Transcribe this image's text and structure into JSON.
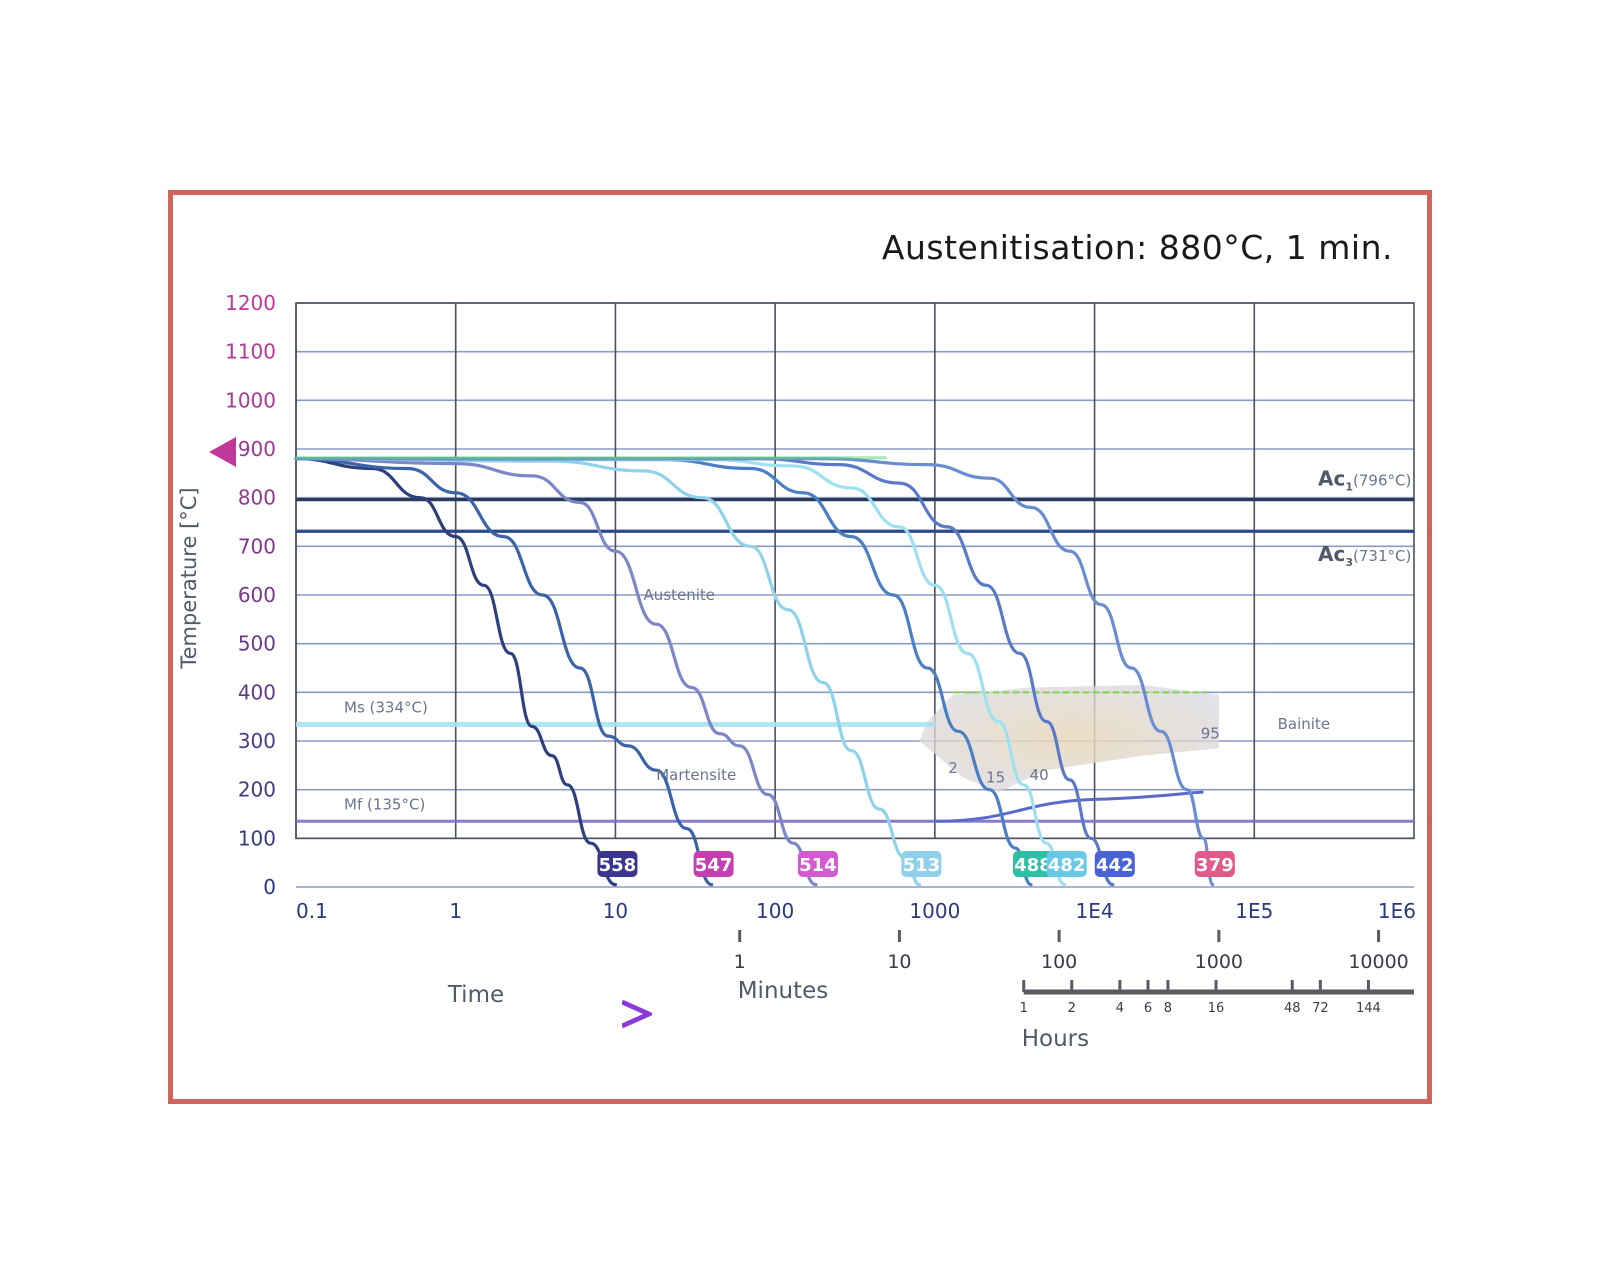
{
  "chart_data": {
    "type": "line",
    "title": "",
    "subtitle": "Austenitisation: 880°C, 1 min.",
    "ylabel": "Temperature [°C]",
    "xlabel": "Time",
    "xscale": "log",
    "xlim": [
      0.1,
      1000000
    ],
    "ylim": [
      0,
      1200
    ],
    "grid": true,
    "y_ticks": [
      0,
      100,
      200,
      300,
      400,
      500,
      600,
      700,
      800,
      900,
      1000,
      1100,
      1200
    ],
    "x_ticks": [
      {
        "value": 0.1,
        "label": "0.1"
      },
      {
        "value": 1,
        "label": "1"
      },
      {
        "value": 10,
        "label": "10"
      },
      {
        "value": 100,
        "label": "100"
      },
      {
        "value": 1000,
        "label": "1000"
      },
      {
        "value": 10000,
        "label": "1E4"
      },
      {
        "value": 100000,
        "label": "1E5"
      },
      {
        "value": 1000000,
        "label": "1E6"
      }
    ],
    "reference_lines": [
      {
        "value": 796,
        "label": "Ac",
        "sub": "1",
        "note": "(796°C)",
        "color": "#2a3a5a"
      },
      {
        "value": 731,
        "label": "Ac",
        "sub": "3",
        "note": "(731°C)",
        "color": "#2a4a8a"
      },
      {
        "value": 334,
        "label": "Ms (334°C)",
        "color": "#a8e4f2"
      },
      {
        "value": 135,
        "label": "Mf (135°C)",
        "color": "#7a6fc8"
      }
    ],
    "region_labels": [
      {
        "label": "Austenite",
        "x": 15,
        "y": 600
      },
      {
        "label": "Martensite",
        "x": 18,
        "y": 230
      },
      {
        "label": "Bainite",
        "x": 140000,
        "y": 335
      }
    ],
    "bainite_percent_labels": [
      {
        "label": "2",
        "x": 1300,
        "y": 245
      },
      {
        "label": "15",
        "x": 2400,
        "y": 225
      },
      {
        "label": "40",
        "x": 4500,
        "y": 230
      },
      {
        "label": "95",
        "x": 53000,
        "y": 315
      }
    ],
    "series": [
      {
        "hardness": "558",
        "color": "#2e3f7e",
        "badge": "#3c3590",
        "points": [
          [
            0.1,
            880
          ],
          [
            0.3,
            860
          ],
          [
            0.6,
            800
          ],
          [
            1,
            720
          ],
          [
            1.5,
            620
          ],
          [
            2.2,
            480
          ],
          [
            3,
            330
          ],
          [
            4,
            270
          ],
          [
            5,
            210
          ],
          [
            7,
            90
          ],
          [
            10,
            5
          ]
        ]
      },
      {
        "hardness": "547",
        "color": "#3a63a8",
        "badge": "#c33fb2",
        "points": [
          [
            0.1,
            880
          ],
          [
            0.5,
            860
          ],
          [
            1,
            810
          ],
          [
            2,
            720
          ],
          [
            3.5,
            600
          ],
          [
            6,
            450
          ],
          [
            9,
            310
          ],
          [
            12,
            290
          ],
          [
            18,
            240
          ],
          [
            28,
            120
          ],
          [
            40,
            5
          ]
        ]
      },
      {
        "hardness": "514",
        "color": "#7d86c6",
        "badge": "#d35ad0",
        "points": [
          [
            0.1,
            880
          ],
          [
            1,
            870
          ],
          [
            3,
            845
          ],
          [
            6,
            790
          ],
          [
            10,
            690
          ],
          [
            18,
            540
          ],
          [
            30,
            410
          ],
          [
            45,
            315
          ],
          [
            60,
            290
          ],
          [
            90,
            190
          ],
          [
            130,
            90
          ],
          [
            180,
            5
          ]
        ]
      },
      {
        "hardness": "513",
        "color": "#8fd2ea",
        "badge": "#8fd0ea",
        "points": [
          [
            0.1,
            880
          ],
          [
            4,
            875
          ],
          [
            15,
            855
          ],
          [
            35,
            800
          ],
          [
            70,
            700
          ],
          [
            120,
            570
          ],
          [
            200,
            420
          ],
          [
            300,
            280
          ],
          [
            450,
            160
          ],
          [
            650,
            60
          ],
          [
            800,
            5
          ]
        ]
      },
      {
        "hardness": "488",
        "color": "#4a7fc4",
        "badge": "#2fbfa4",
        "points": [
          [
            0.1,
            880
          ],
          [
            20,
            878
          ],
          [
            70,
            860
          ],
          [
            150,
            810
          ],
          [
            300,
            720
          ],
          [
            550,
            600
          ],
          [
            900,
            450
          ],
          [
            1400,
            320
          ],
          [
            2200,
            200
          ],
          [
            3200,
            80
          ],
          [
            4000,
            5
          ]
        ]
      },
      {
        "hardness": "482",
        "color": "#9fe0f0",
        "badge": "#68c9e6",
        "points": [
          [
            0.1,
            880
          ],
          [
            40,
            878
          ],
          [
            130,
            865
          ],
          [
            300,
            820
          ],
          [
            600,
            740
          ],
          [
            1000,
            620
          ],
          [
            1600,
            480
          ],
          [
            2500,
            340
          ],
          [
            3600,
            210
          ],
          [
            5000,
            90
          ],
          [
            6500,
            5
          ]
        ]
      },
      {
        "hardness": "442",
        "color": "#5a7ac8",
        "badge": "#4a62d8",
        "points": [
          [
            0.1,
            880
          ],
          [
            80,
            880
          ],
          [
            250,
            868
          ],
          [
            600,
            830
          ],
          [
            1200,
            740
          ],
          [
            2100,
            620
          ],
          [
            3400,
            480
          ],
          [
            5000,
            340
          ],
          [
            7000,
            220
          ],
          [
            9500,
            100
          ],
          [
            13000,
            5
          ]
        ]
      },
      {
        "hardness": "379",
        "color": "#6a8cd0",
        "badge": "#e05a8a",
        "points": [
          [
            0.1,
            880
          ],
          [
            200,
            880
          ],
          [
            900,
            868
          ],
          [
            2200,
            840
          ],
          [
            4000,
            780
          ],
          [
            7000,
            690
          ],
          [
            11000,
            580
          ],
          [
            17000,
            450
          ],
          [
            26000,
            320
          ],
          [
            38000,
            200
          ],
          [
            48000,
            100
          ],
          [
            55000,
            5
          ]
        ]
      }
    ],
    "secondary_axes": [
      {
        "name": "Minutes",
        "ticks": [
          {
            "value": 60,
            "label": "1"
          },
          {
            "value": 600,
            "label": "10"
          },
          {
            "value": 6000,
            "label": "100"
          },
          {
            "value": 60000,
            "label": "1000"
          },
          {
            "value": 600000,
            "label": "10000"
          }
        ]
      },
      {
        "name": "Hours",
        "ticks": [
          {
            "value": 3600,
            "label": "1"
          },
          {
            "value": 7200,
            "label": "2"
          },
          {
            "value": 14400,
            "label": "4"
          },
          {
            "value": 21600,
            "label": "6"
          },
          {
            "value": 28800,
            "label": "8"
          },
          {
            "value": 57600,
            "label": "16"
          },
          {
            "value": 172800,
            "label": "48"
          },
          {
            "value": 259200,
            "label": "72"
          },
          {
            "value": 518400,
            "label": "144"
          }
        ]
      }
    ]
  }
}
